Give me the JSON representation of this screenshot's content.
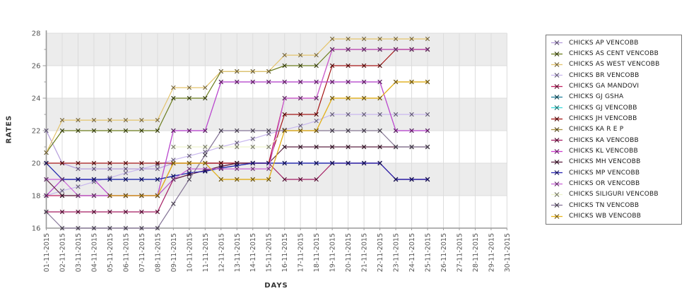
{
  "chart_data": {
    "type": "line",
    "title": "",
    "xlabel": "DAYS",
    "ylabel": "RATES",
    "marker": "x",
    "grid": true,
    "legend_position": "right",
    "ylim": [
      16,
      28
    ],
    "y_ticks": [
      16,
      18,
      20,
      22,
      24,
      26,
      28
    ],
    "band_pairs": [
      [
        18,
        20
      ],
      [
        22,
        24
      ],
      [
        26,
        28
      ]
    ],
    "band_color": "#ececec",
    "grid_color": "#dcdcdc",
    "axis_color": "#9a9a9a",
    "tick_label_color": "#555555",
    "x_tick_labels": [
      "01-11-2015",
      "02-11-2015",
      "03-11-2015",
      "04-11-2015",
      "05-11-2015",
      "06-11-2015",
      "07-11-2015",
      "08-11-2015",
      "09-11-2015",
      "10-11-2015",
      "11-11-2015",
      "12-11-2015",
      "13-11-2015",
      "14-11-2015",
      "15-11-2015",
      "16-11-2015",
      "17-11-2015",
      "18-11-2015",
      "19-11-2015",
      "20-11-2015",
      "21-11-2015",
      "22-11-2015",
      "23-11-2015",
      "24-11-2015",
      "25-11-2015",
      "26-11-2015",
      "27-11-2015",
      "28-11-2015",
      "29-11-2015",
      "30-11-2015"
    ],
    "series": [
      {
        "name": "CHICKS AP VENCOBB",
        "color": "#b59ddb",
        "values": [
          22,
          20,
          19.65,
          19.65,
          19.65,
          19.65,
          19.65,
          19.65,
          20,
          20,
          20,
          20,
          20,
          20,
          20,
          20,
          20,
          20,
          20,
          20,
          20,
          20,
          19,
          19,
          19
        ]
      },
      {
        "name": "CHICKS AS CENT VENCOBB",
        "color": "#6b7c1d",
        "values": [
          20.65,
          22,
          22,
          22,
          22,
          22,
          22,
          22,
          24,
          24,
          24,
          25.65,
          25.65,
          25.65,
          25.65,
          26,
          26,
          26,
          27,
          27,
          27,
          27,
          27,
          27,
          27
        ]
      },
      {
        "name": "CHICKS AS WEST VENCOBB",
        "color": "#e4c46d",
        "values": [
          20.65,
          22.65,
          22.65,
          22.65,
          22.65,
          22.65,
          22.65,
          22.65,
          24.65,
          24.65,
          24.65,
          25.65,
          25.65,
          25.65,
          25.65,
          26.65,
          26.65,
          26.65,
          27.65,
          27.65,
          27.65,
          27.65,
          27.65,
          27.65,
          27.65
        ]
      },
      {
        "name": "CHICKS BR VENCOBB",
        "color": "#c8b7ee",
        "values": [
          18,
          18.3,
          18.55,
          18.85,
          19.1,
          19.4,
          19.65,
          19.9,
          20.2,
          20.45,
          20.7,
          21,
          21.25,
          21.5,
          21.8,
          22.05,
          22.3,
          22.6,
          23,
          23,
          23,
          23,
          23,
          23,
          23
        ]
      },
      {
        "name": "CHICKS GA MANDOVI",
        "color": "#c11f60",
        "values": [
          18,
          18,
          18,
          18,
          18,
          18,
          18,
          18,
          20,
          20,
          20,
          20,
          20,
          20,
          20,
          24,
          24,
          24,
          27,
          27,
          27,
          27,
          27,
          27,
          27
        ]
      },
      {
        "name": "CHICKS GJ GSHA",
        "color": "#20809c",
        "values": [
          20,
          19,
          19,
          19,
          19,
          19,
          19,
          19,
          19.2,
          19.4,
          19.5,
          19.7,
          19.85,
          20,
          20,
          20,
          20,
          20,
          20,
          20,
          20,
          20,
          19,
          19,
          19
        ]
      },
      {
        "name": "CHICKS GJ VENCOBB",
        "color": "#38dcdc",
        "values": [
          18,
          19,
          19,
          19,
          18,
          18,
          18,
          18,
          22,
          22,
          22,
          25,
          25,
          25,
          25,
          25,
          25,
          25,
          25,
          25,
          25,
          25,
          22,
          22,
          22
        ]
      },
      {
        "name": "CHICKS JH VENCOBB",
        "color": "#a41414",
        "values": [
          20,
          20,
          20,
          20,
          20,
          20,
          20,
          20,
          20,
          20,
          20,
          20,
          20,
          20,
          20,
          23,
          23,
          23,
          26,
          26,
          26,
          26,
          27,
          27,
          27
        ]
      },
      {
        "name": "CHICKS KA R E P",
        "color": "#a8913c",
        "values": [
          null,
          null,
          null,
          null,
          18,
          18,
          18,
          18,
          20,
          20,
          20,
          19,
          19,
          19,
          19,
          22,
          22,
          22,
          24,
          24,
          24,
          24,
          25,
          25,
          25
        ]
      },
      {
        "name": "CHICKS KA VENCOBB",
        "color": "#a31b62",
        "values": [
          17,
          17,
          17,
          17,
          17,
          17,
          17,
          17,
          19,
          19.3,
          19.55,
          19.8,
          20,
          20,
          20,
          19,
          19,
          19,
          20,
          20,
          20,
          20,
          19,
          19,
          19
        ]
      },
      {
        "name": "CHICKS KL VENCOBB",
        "color": "#cd3ccd",
        "values": [
          18,
          19,
          19,
          19,
          18,
          18,
          18,
          18,
          22,
          22,
          22,
          25,
          25,
          25,
          25,
          25,
          25,
          25,
          25,
          25,
          25,
          25,
          22,
          22,
          22
        ]
      },
      {
        "name": "CHICKS MH VENCOBB",
        "color": "#5e2443",
        "values": [
          19,
          18,
          18,
          18,
          18,
          18,
          18,
          18,
          19,
          19.3,
          19.55,
          19.8,
          20,
          20,
          20,
          21,
          21,
          21,
          21,
          21,
          21,
          21,
          21,
          21,
          21
        ]
      },
      {
        "name": "CHICKS MP VENCOBB",
        "color": "#2823b2",
        "values": [
          20,
          19,
          19,
          19,
          19,
          19,
          19,
          19,
          19.2,
          19.4,
          19.5,
          19.7,
          19.85,
          20,
          20,
          20,
          20,
          20,
          20,
          20,
          20,
          20,
          19,
          19,
          19
        ]
      },
      {
        "name": "CHICKS OR VENCOBB",
        "color": "#ca63d8",
        "values": [
          19,
          19,
          18,
          18,
          18,
          18,
          18,
          18,
          19,
          19.65,
          19.65,
          19.65,
          19.65,
          19.65,
          19.65,
          24,
          24,
          24,
          27,
          27,
          27,
          27,
          27,
          27,
          27
        ]
      },
      {
        "name": "CHICKS SILIGURI VENCOBB",
        "color": "#eef3cc",
        "values": [
          null,
          null,
          null,
          null,
          null,
          null,
          null,
          null,
          21,
          21,
          21,
          21,
          21,
          21,
          21,
          22,
          22,
          22,
          22,
          22,
          22,
          22,
          21,
          21,
          21
        ]
      },
      {
        "name": "CHICKS TN VENCOBB",
        "color": "#857597",
        "values": [
          17,
          16,
          16,
          16,
          16,
          16,
          16,
          16,
          17.5,
          19,
          20.5,
          22,
          22,
          22,
          22,
          22,
          22,
          22,
          22,
          22,
          22,
          22,
          21,
          21,
          21
        ]
      },
      {
        "name": "CHICKS WB VENCOBB",
        "color": "#e9b51b",
        "values": [
          null,
          null,
          null,
          null,
          18,
          18,
          18,
          18,
          20,
          20,
          20,
          19,
          19,
          19,
          19,
          22,
          22,
          22,
          24,
          24,
          24,
          24,
          25,
          25,
          25
        ]
      }
    ]
  }
}
